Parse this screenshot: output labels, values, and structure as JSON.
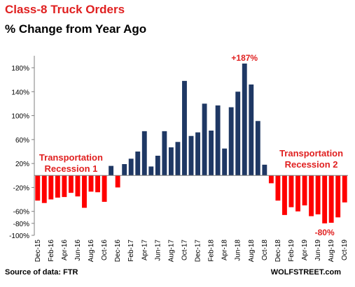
{
  "header": {
    "title": "Class-8 Truck Orders",
    "subtitle": "% Change from Year Ago"
  },
  "footer": {
    "source": "Source of data: FTR",
    "brand": "WOLFSTREET.com"
  },
  "colors": {
    "positive": "#1f3864",
    "negative": "#ff0000",
    "annotation": "#e02020",
    "axis": "#7f7f7f",
    "grid": "#d9d9d9"
  },
  "chart_data": {
    "type": "bar",
    "ylim": [
      -100,
      200
    ],
    "yticks": [
      -100,
      -80,
      -60,
      -20,
      20,
      60,
      100,
      140,
      180
    ],
    "ytick_labels": [
      "-100%",
      "-80%",
      "-60%",
      "-20%",
      "20%",
      "60%",
      "100%",
      "140%",
      "180%"
    ],
    "grid": false,
    "categories": [
      "Dec-15",
      "Jan-16",
      "Feb-16",
      "Mar-16",
      "Apr-16",
      "May-16",
      "Jun-16",
      "Jul-16",
      "Aug-16",
      "Sep-16",
      "Oct-16",
      "Nov-16",
      "Dec-16",
      "Jan-17",
      "Feb-17",
      "Mar-17",
      "Apr-17",
      "May-17",
      "Jun-17",
      "Jul-17",
      "Aug-17",
      "Sep-17",
      "Oct-17",
      "Nov-17",
      "Dec-17",
      "Jan-18",
      "Feb-18",
      "Mar-18",
      "Apr-18",
      "May-18",
      "Jun-18",
      "Jul-18",
      "Aug-18",
      "Sep-18",
      "Oct-18",
      "Nov-18",
      "Dec-18",
      "Jan-19",
      "Feb-19",
      "Mar-19",
      "Apr-19",
      "May-19",
      "Jun-19",
      "Jul-19",
      "Aug-19",
      "Sep-19",
      "Oct-19"
    ],
    "tick_labels_shown": [
      "Dec-15",
      "Feb-16",
      "Apr-16",
      "Jun-16",
      "Aug-16",
      "Oct-16",
      "Dec-16",
      "Feb-17",
      "Apr-17",
      "Jun-17",
      "Aug-17",
      "Oct-17",
      "Dec-17",
      "Feb-18",
      "Apr-18",
      "Jun-18",
      "Aug-18",
      "Oct-18",
      "Dec-18",
      "Feb-19",
      "Apr-19",
      "Jun-19",
      "Aug-19",
      "Oct-19"
    ],
    "values": [
      -42,
      -46,
      -40,
      -37,
      -36,
      -29,
      -35,
      -54,
      -27,
      -28,
      -44,
      16,
      -20,
      19,
      28,
      40,
      74,
      15,
      33,
      74,
      47,
      56,
      158,
      66,
      72,
      120,
      75,
      117,
      45,
      114,
      140,
      187,
      152,
      91,
      18,
      -13,
      -42,
      -66,
      -53,
      -60,
      -50,
      -68,
      -65,
      -80,
      -79,
      -70,
      -45
    ],
    "annotations": [
      {
        "text": "+187%",
        "category": "Jul-18"
      },
      {
        "text": "-80%",
        "category": "Jul-19"
      },
      {
        "text": "Transportation\nRecession 1",
        "category": "May-16"
      },
      {
        "text": "Transportation\nRecession 2",
        "category": "May-19"
      }
    ]
  }
}
